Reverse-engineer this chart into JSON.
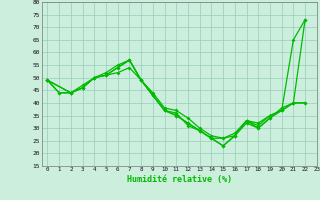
{
  "xlabel": "Humidité relative (%)",
  "background_color": "#cceedd",
  "grid_color": "#99ccbb",
  "line_color": "#00bb00",
  "xlim": [
    -0.5,
    23
  ],
  "ylim": [
    15,
    80
  ],
  "yticks": [
    15,
    20,
    25,
    30,
    35,
    40,
    45,
    50,
    55,
    60,
    65,
    70,
    75,
    80
  ],
  "xticks": [
    0,
    1,
    2,
    3,
    4,
    5,
    6,
    7,
    8,
    9,
    10,
    11,
    12,
    13,
    14,
    15,
    16,
    17,
    18,
    19,
    20,
    21,
    22,
    23
  ],
  "series": [
    {
      "x": [
        0,
        1,
        2,
        3,
        4,
        5,
        6,
        7,
        8,
        9,
        10,
        11,
        12,
        13,
        14,
        15,
        16,
        17,
        18,
        19,
        20,
        21,
        22
      ],
      "y": [
        49,
        44,
        44,
        46,
        50,
        51,
        54,
        57,
        49,
        43,
        37,
        35,
        32,
        29,
        26,
        23,
        27,
        33,
        32,
        35,
        37,
        65,
        73
      ]
    },
    {
      "x": [
        0,
        1,
        2,
        3,
        4,
        5,
        6,
        7,
        8,
        9,
        10,
        11,
        12,
        13,
        14,
        15,
        16,
        17,
        18,
        19,
        20,
        21,
        22
      ],
      "y": [
        49,
        44,
        44,
        47,
        50,
        52,
        55,
        57,
        49,
        43,
        37,
        35,
        32,
        29,
        26,
        26,
        28,
        33,
        30,
        34,
        37,
        40,
        73
      ]
    },
    {
      "x": [
        0,
        2,
        3,
        4,
        5,
        6,
        7,
        8,
        9,
        10,
        11,
        12,
        13,
        14,
        15,
        16,
        17,
        18,
        19,
        20,
        21,
        22
      ],
      "y": [
        49,
        44,
        46,
        50,
        51,
        54,
        57,
        49,
        43,
        37,
        36,
        31,
        29,
        26,
        23,
        27,
        32,
        30,
        34,
        38,
        40,
        40
      ]
    },
    {
      "x": [
        0,
        2,
        3,
        4,
        5,
        6,
        7,
        8,
        9,
        10,
        11,
        12,
        13,
        14,
        15,
        16,
        17,
        18,
        19,
        20,
        21,
        22
      ],
      "y": [
        49,
        44,
        46,
        50,
        51,
        52,
        54,
        49,
        44,
        38,
        37,
        34,
        30,
        27,
        26,
        27,
        33,
        31,
        35,
        37,
        40,
        40
      ]
    }
  ]
}
